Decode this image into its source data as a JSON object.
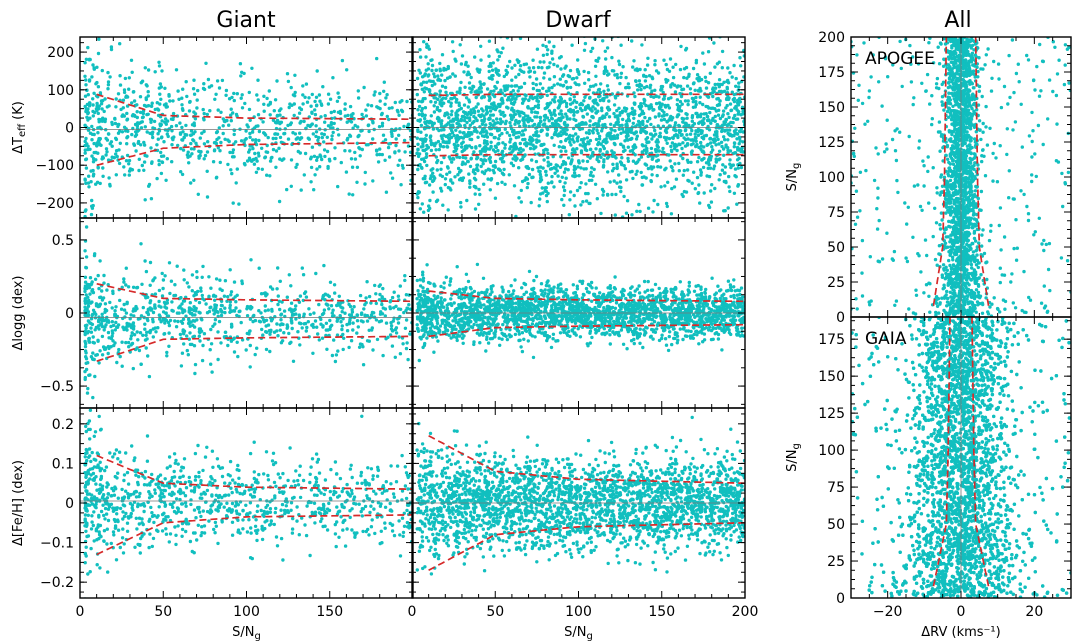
{
  "column_titles": {
    "giant": "Giant",
    "dwarf": "Dwarf",
    "all": "All"
  },
  "colors": {
    "points": "#11bfbf",
    "envelope": "#d62a2a",
    "median": "#777777",
    "axes": "#000000"
  },
  "chart_data": [
    {
      "type": "scatter",
      "column": "Giant",
      "row": "teff",
      "ylabel": "ΔT_eff (K)",
      "xlabel": "",
      "xlim": [
        0,
        200
      ],
      "ylim": [
        -240,
        240
      ],
      "xticks": [
        0,
        50,
        100,
        150
      ],
      "yticks": [
        -200,
        -100,
        0,
        100,
        200
      ],
      "scatter": {
        "n": 1000,
        "spread": 72,
        "offset": -5,
        "x_range": [
          3,
          200
        ],
        "concentration": "low S/N"
      },
      "envelope": [
        {
          "x": 10,
          "upper": 88,
          "lower": -100
        },
        {
          "x": 50,
          "upper": 32,
          "lower": -55
        },
        {
          "x": 100,
          "upper": 25,
          "lower": -45
        },
        {
          "x": 200,
          "upper": 22,
          "lower": -40
        }
      ]
    },
    {
      "type": "scatter",
      "column": "Dwarf",
      "row": "teff",
      "ylabel": "",
      "xlabel": "",
      "xlim": [
        0,
        200
      ],
      "ylim": [
        -240,
        240
      ],
      "scatter": {
        "n": 2600,
        "spread": 110,
        "offset": 0,
        "x_range": [
          3,
          200
        ],
        "concentration": "uniform"
      },
      "envelope": [
        {
          "x": 10,
          "upper": 85,
          "lower": -75
        },
        {
          "x": 50,
          "upper": 88,
          "lower": -72
        },
        {
          "x": 100,
          "upper": 88,
          "lower": -72
        },
        {
          "x": 200,
          "upper": 88,
          "lower": -72
        }
      ]
    },
    {
      "type": "scatter",
      "column": "Giant",
      "row": "logg",
      "ylabel": "Δlogg (dex)",
      "xlabel": "",
      "xlim": [
        0,
        200
      ],
      "ylim": [
        -0.65,
        0.65
      ],
      "yticks": [
        -0.5,
        0.0,
        0.5
      ],
      "scatter": {
        "n": 950,
        "spread": 0.14,
        "offset": -0.03,
        "x_range": [
          3,
          200
        ],
        "concentration": "low S/N"
      },
      "envelope": [
        {
          "x": 10,
          "upper": 0.2,
          "lower": -0.33
        },
        {
          "x": 50,
          "upper": 0.1,
          "lower": -0.18
        },
        {
          "x": 100,
          "upper": 0.09,
          "lower": -0.17
        },
        {
          "x": 200,
          "upper": 0.08,
          "lower": -0.16
        }
      ]
    },
    {
      "type": "scatter",
      "column": "Dwarf",
      "row": "logg",
      "ylabel": "",
      "xlabel": "",
      "xlim": [
        0,
        200
      ],
      "ylim": [
        -0.65,
        0.65
      ],
      "scatter": {
        "n": 2500,
        "spread": 0.1,
        "offset": 0,
        "x_range": [
          3,
          200
        ],
        "concentration": "uniform"
      },
      "envelope": [
        {
          "x": 10,
          "upper": 0.15,
          "lower": -0.16
        },
        {
          "x": 50,
          "upper": 0.1,
          "lower": -0.1
        },
        {
          "x": 100,
          "upper": 0.09,
          "lower": -0.09
        },
        {
          "x": 200,
          "upper": 0.08,
          "lower": -0.08
        }
      ]
    },
    {
      "type": "scatter",
      "column": "Giant",
      "row": "feh",
      "ylabel": "Δ[Fe/H] (dex)",
      "xlabel": "S/N_g",
      "xlim": [
        0,
        200
      ],
      "ylim": [
        -0.24,
        0.24
      ],
      "xticks": [
        0,
        50,
        100,
        150
      ],
      "yticks": [
        -0.2,
        -0.1,
        0.0,
        0.1,
        0.2
      ],
      "scatter": {
        "n": 1000,
        "spread": 0.055,
        "offset": 0.005,
        "x_range": [
          3,
          200
        ],
        "concentration": "low S/N"
      },
      "envelope": [
        {
          "x": 10,
          "upper": 0.12,
          "lower": -0.13
        },
        {
          "x": 50,
          "upper": 0.05,
          "lower": -0.05
        },
        {
          "x": 100,
          "upper": 0.04,
          "lower": -0.035
        },
        {
          "x": 200,
          "upper": 0.035,
          "lower": -0.03
        }
      ]
    },
    {
      "type": "scatter",
      "column": "Dwarf",
      "row": "feh",
      "ylabel": "",
      "xlabel": "S/N_g",
      "xlim": [
        0,
        200
      ],
      "ylim": [
        -0.24,
        0.24
      ],
      "xticks": [
        0,
        50,
        100,
        150,
        200
      ],
      "scatter": {
        "n": 2600,
        "spread": 0.065,
        "offset": 0,
        "x_range": [
          3,
          200
        ],
        "concentration": "uniform"
      },
      "envelope": [
        {
          "x": 10,
          "upper": 0.17,
          "lower": -0.17
        },
        {
          "x": 50,
          "upper": 0.08,
          "lower": -0.08
        },
        {
          "x": 100,
          "upper": 0.06,
          "lower": -0.06
        },
        {
          "x": 200,
          "upper": 0.05,
          "lower": -0.05
        }
      ]
    },
    {
      "type": "scatter",
      "column": "All",
      "row": "apogee",
      "annotation": "APOGEE",
      "ylabel": "S/N_g",
      "xlabel": "",
      "xlim": [
        -30,
        30
      ],
      "ylim": [
        0,
        200
      ],
      "yticks": [
        0,
        25,
        50,
        75,
        100,
        125,
        150,
        175,
        200
      ],
      "scatter": {
        "n": 2200,
        "spread": 2.0,
        "offset": 0,
        "y_range": [
          0,
          200
        ],
        "tail": 0.15
      },
      "envelope": [
        {
          "y": 8,
          "upper": 7.5,
          "lower": -7.5
        },
        {
          "y": 50,
          "upper": 5,
          "lower": -5
        },
        {
          "y": 100,
          "upper": 4.5,
          "lower": -4.5
        },
        {
          "y": 200,
          "upper": 4,
          "lower": -4
        }
      ]
    },
    {
      "type": "scatter",
      "column": "All",
      "row": "gaia",
      "annotation": "GAIA",
      "ylabel": "S/N_g",
      "xlabel": "ΔRV (kms⁻¹)",
      "xlim": [
        -30,
        30
      ],
      "ylim": [
        0,
        190
      ],
      "xticks": [
        -20,
        0,
        20
      ],
      "yticks": [
        0,
        25,
        50,
        75,
        100,
        125,
        150,
        175
      ],
      "scatter": {
        "n": 5500,
        "spread": 5.5,
        "offset": 0,
        "y_range": [
          0,
          190
        ],
        "tail": 0.1
      },
      "envelope": [
        {
          "y": 8,
          "upper": 7.5,
          "lower": -7.5
        },
        {
          "y": 50,
          "upper": 4,
          "lower": -4
        },
        {
          "y": 100,
          "upper": 3.5,
          "lower": -3.5
        },
        {
          "y": 190,
          "upper": 3,
          "lower": -3
        }
      ]
    }
  ]
}
